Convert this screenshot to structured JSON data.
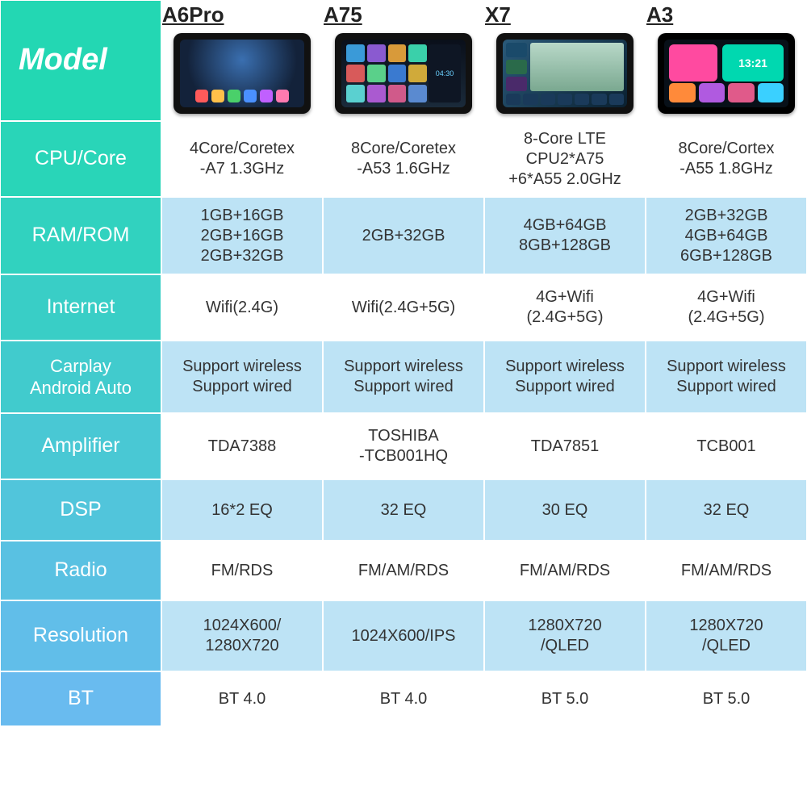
{
  "colors": {
    "gradient_start": "#1fd9b0",
    "gradient_end": "#6fb8f5",
    "data_bg_light": "#ffffff",
    "data_bg_alt": "#bde3f5",
    "text": "#333333",
    "header_text": "#ffffff"
  },
  "products": [
    "A6Pro",
    "A75",
    "X7",
    "A3"
  ],
  "row_headers": {
    "model": "Model",
    "cpu": "CPU/Core",
    "ram": "RAM/ROM",
    "internet": "Internet",
    "carplay": "Carplay\nAndroid Auto",
    "amp": "Amplifier",
    "dsp": "DSP",
    "radio": "Radio",
    "res": "Resolution",
    "bt": "BT"
  },
  "rows": {
    "cpu": [
      "4Core/Coretex\n-A7 1.3GHz",
      "8Core/Coretex\n-A53 1.6GHz",
      "8-Core LTE\nCPU2*A75\n+6*A55 2.0GHz",
      "8Core/Cortex\n-A55 1.8GHz"
    ],
    "ram": [
      "1GB+16GB\n2GB+16GB\n2GB+32GB",
      "2GB+32GB",
      "4GB+64GB\n8GB+128GB",
      "2GB+32GB\n4GB+64GB\n6GB+128GB"
    ],
    "internet": [
      "Wifi(2.4G)",
      "Wifi(2.4G+5G)",
      "4G+Wifi\n(2.4G+5G)",
      "4G+Wifi\n(2.4G+5G)"
    ],
    "carplay": [
      "Support wireless\nSupport wired",
      "Support wireless\nSupport wired",
      "Support wireless\nSupport wired",
      "Support wireless\nSupport wired"
    ],
    "amp": [
      "TDA7388",
      "TOSHIBA\n-TCB001HQ",
      "TDA7851",
      "TCB001"
    ],
    "dsp": [
      "16*2 EQ",
      "32 EQ",
      "30 EQ",
      "32 EQ"
    ],
    "radio": [
      "FM/RDS",
      "FM/AM/RDS",
      "FM/AM/RDS",
      "FM/AM/RDS"
    ],
    "res": [
      "1024X600/\n1280X720",
      "1024X600/IPS",
      "1280X720\n/QLED",
      "1280X720\n/QLED"
    ],
    "bt": [
      "BT 4.0",
      "BT 4.0",
      "BT 5.0",
      "BT 5.0"
    ]
  },
  "row_order": [
    "cpu",
    "ram",
    "internet",
    "carplay",
    "amp",
    "dsp",
    "radio",
    "res",
    "bt"
  ],
  "row_heights": {
    "cpu": "h-cpu",
    "ram": "h-ram",
    "internet": "h-internet",
    "carplay": "h-carplay",
    "amp": "h-amp",
    "dsp": "h-dsp",
    "radio": "h-radio",
    "res": "h-res",
    "bt": "h-bt"
  },
  "row_bg_pattern": [
    "#ffffff",
    "#bde3f5",
    "#ffffff",
    "#bde3f5",
    "#ffffff",
    "#bde3f5",
    "#ffffff",
    "#bde3f5",
    "#ffffff"
  ],
  "gradient_stops": [
    0,
    12,
    23,
    33,
    43,
    53,
    63,
    73,
    83,
    93,
    100
  ],
  "device_clock": "13:21",
  "device_colors": {
    "a6pro_dock": [
      "#ff5a5a",
      "#ffc04a",
      "#4ad06a",
      "#4a90ff",
      "#c060ff",
      "#ff7ab0"
    ],
    "a75_grid": [
      "#3a9ad8",
      "#8a5ad0",
      "#d89a3a",
      "#3ad0aa",
      "#d85a5a",
      "#5ad08a",
      "#3a7ad0",
      "#d0aa3a",
      "#5ad0d0",
      "#aa5ad0",
      "#d05a8a",
      "#5a8ad0"
    ],
    "x7_left": [
      "#1a4a6a",
      "#2a6a4a",
      "#4a2a6a"
    ],
    "x7_bot": [
      "#1a3a5a",
      "#1a3a5a",
      "#1a3a5a",
      "#1a3a5a",
      "#1a3a5a",
      "#1a3a5a",
      "#1a3a5a"
    ],
    "a3_big": "#ff4aa0",
    "a3_bot": [
      "#ff8a3a",
      "#b05ae0",
      "#e05a8a",
      "#3ad0ff"
    ]
  }
}
